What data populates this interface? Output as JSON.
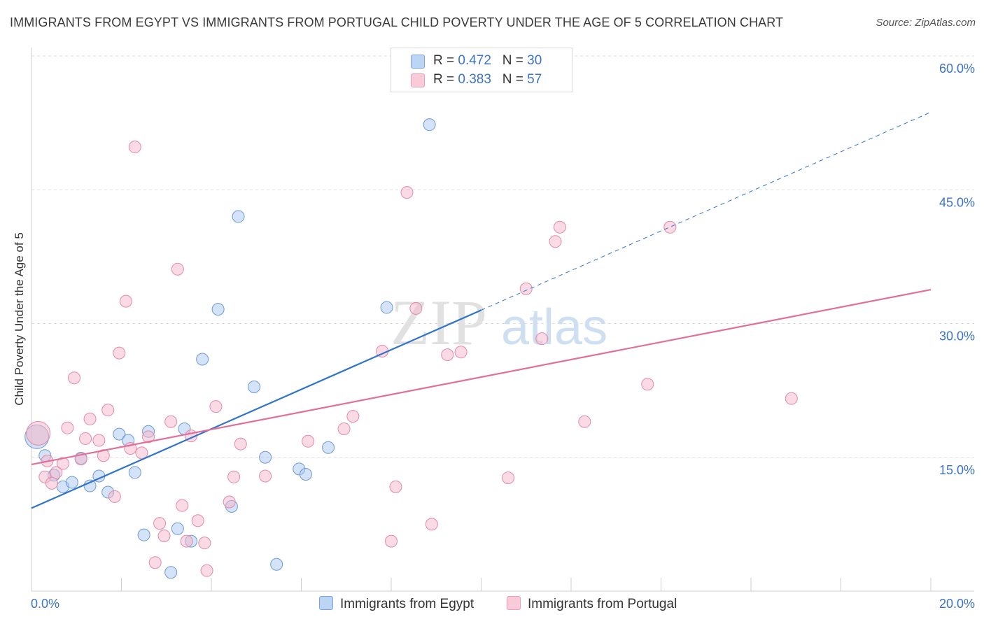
{
  "header": {
    "title": "IMMIGRANTS FROM EGYPT VS IMMIGRANTS FROM PORTUGAL CHILD POVERTY UNDER THE AGE OF 5 CORRELATION CHART",
    "source": "Source: ZipAtlas.com"
  },
  "watermark": {
    "zip": "ZIP",
    "atlas": "atlas"
  },
  "legend": {
    "egypt": {
      "r_label": "R = ",
      "r_value": "0.472",
      "n_label": "N = ",
      "n_value": "30",
      "color": "#a9c8f0"
    },
    "portugal": {
      "r_label": "R = ",
      "r_value": "0.383",
      "n_label": "N = ",
      "n_value": "57",
      "color": "#f5b8cb"
    }
  },
  "bottom_legend": {
    "egypt_label": "Immigrants from Egypt",
    "portugal_label": "Immigrants from Portugal"
  },
  "chart_data": {
    "type": "scatter",
    "xlabel": "",
    "ylabel": "Child Poverty Under the Age of 5",
    "xlim": [
      0,
      20
    ],
    "ylim": [
      0,
      60
    ],
    "x_tick_labels": [
      {
        "value": 0,
        "label": "0.0%"
      },
      {
        "value": 20,
        "label": "20.0%"
      }
    ],
    "y_tick_labels": [
      {
        "value": 15,
        "label": "15.0%"
      },
      {
        "value": 30,
        "label": "30.0%"
      },
      {
        "value": 45,
        "label": "45.0%"
      },
      {
        "value": 60,
        "label": "60.0%"
      }
    ],
    "grid": "horizontal dashed",
    "legend_position": "top-center",
    "series": [
      {
        "name": "Immigrants from Egypt",
        "color": "#a9c8f0",
        "stroke": "#6d9ad4",
        "trend_color": "#2f74cc",
        "trend": {
          "x0": 0,
          "y0": 9.3,
          "x1": 10,
          "y1": 31.5,
          "dash_to_x": 20,
          "dash_to_y": 53.7
        },
        "points": [
          [
            0.12,
            17.3,
            "big"
          ],
          [
            0.3,
            15.2
          ],
          [
            0.5,
            13.0
          ],
          [
            0.7,
            11.7
          ],
          [
            0.9,
            12.2
          ],
          [
            1.1,
            14.9
          ],
          [
            1.3,
            11.8
          ],
          [
            1.5,
            12.9
          ],
          [
            1.7,
            11.1
          ],
          [
            1.95,
            17.6
          ],
          [
            2.15,
            16.9
          ],
          [
            2.3,
            13.3
          ],
          [
            2.5,
            6.3
          ],
          [
            2.6,
            17.9
          ],
          [
            3.1,
            2.1
          ],
          [
            3.25,
            7.0
          ],
          [
            3.4,
            18.2
          ],
          [
            3.55,
            5.6
          ],
          [
            3.8,
            26.0
          ],
          [
            4.15,
            31.6
          ],
          [
            4.45,
            9.5
          ],
          [
            4.6,
            42.0
          ],
          [
            4.95,
            22.9
          ],
          [
            5.2,
            15.0
          ],
          [
            5.45,
            3.0
          ],
          [
            5.95,
            13.7
          ],
          [
            6.1,
            13.1
          ],
          [
            6.6,
            16.1
          ],
          [
            7.9,
            31.8
          ],
          [
            8.85,
            52.3
          ]
        ]
      },
      {
        "name": "Immigrants from Portugal",
        "color": "#f5b8cb",
        "stroke": "#e38aa8",
        "trend_color": "#e0709a",
        "trend": {
          "x0": 0,
          "y0": 14.2,
          "x1": 20,
          "y1": 33.8
        },
        "points": [
          [
            0.15,
            17.7,
            "big"
          ],
          [
            0.3,
            12.8
          ],
          [
            0.35,
            14.6
          ],
          [
            0.45,
            12.1
          ],
          [
            0.55,
            13.3
          ],
          [
            0.7,
            14.3
          ],
          [
            0.8,
            18.3
          ],
          [
            0.95,
            23.9
          ],
          [
            1.1,
            14.8
          ],
          [
            1.2,
            17.1
          ],
          [
            1.3,
            19.3
          ],
          [
            1.5,
            16.9
          ],
          [
            1.6,
            15.2
          ],
          [
            1.7,
            20.3
          ],
          [
            1.85,
            10.6
          ],
          [
            1.95,
            26.7
          ],
          [
            2.1,
            32.5
          ],
          [
            2.2,
            16.0
          ],
          [
            2.3,
            49.8
          ],
          [
            2.45,
            15.5
          ],
          [
            2.6,
            17.3
          ],
          [
            2.75,
            3.2
          ],
          [
            2.85,
            7.6
          ],
          [
            2.95,
            6.2
          ],
          [
            3.1,
            19.0
          ],
          [
            3.25,
            36.1
          ],
          [
            3.35,
            9.6
          ],
          [
            3.45,
            5.6
          ],
          [
            3.55,
            17.4
          ],
          [
            3.7,
            7.9
          ],
          [
            3.85,
            5.4
          ],
          [
            3.9,
            2.3
          ],
          [
            4.1,
            20.7
          ],
          [
            4.4,
            10.0
          ],
          [
            4.5,
            12.8
          ],
          [
            4.65,
            16.5
          ],
          [
            5.2,
            12.9
          ],
          [
            6.15,
            16.8
          ],
          [
            6.95,
            18.2
          ],
          [
            7.15,
            19.6
          ],
          [
            7.8,
            26.9
          ],
          [
            8.0,
            5.6
          ],
          [
            8.1,
            11.7
          ],
          [
            8.35,
            44.7
          ],
          [
            8.55,
            31.7
          ],
          [
            8.9,
            7.5
          ],
          [
            9.25,
            26.5
          ],
          [
            9.55,
            26.8
          ],
          [
            10.6,
            12.7
          ],
          [
            11.0,
            33.9
          ],
          [
            11.35,
            28.3
          ],
          [
            11.65,
            39.2
          ],
          [
            11.75,
            40.8
          ],
          [
            12.3,
            19.0
          ],
          [
            13.7,
            23.2
          ],
          [
            14.2,
            40.8
          ],
          [
            16.9,
            21.6
          ]
        ]
      }
    ]
  }
}
